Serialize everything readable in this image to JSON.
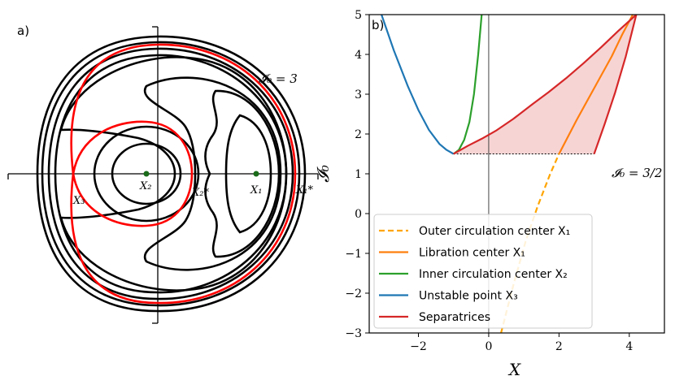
{
  "panel_a": {
    "label": "a)",
    "contour_label": "𝓘₀ = 3",
    "point_labels": {
      "X3": "X₃",
      "X2": "X₂",
      "X2s": "X₂*",
      "X1": "X₁",
      "X1s": "X₁*"
    }
  },
  "chart_data": {
    "type": "line",
    "panel_label": "b)",
    "xlabel": "X",
    "ylabel": "𝓘₀",
    "xlim": [
      -3.4,
      5.0
    ],
    "ylim": [
      -3,
      5
    ],
    "xticks": [
      -2,
      0,
      2,
      4
    ],
    "yticks": [
      -3,
      -2,
      -1,
      0,
      1,
      2,
      3,
      4,
      5
    ],
    "xtick_labels": [
      "−2",
      "0",
      "2",
      "4"
    ],
    "ytick_labels": [
      "−3",
      "−2",
      "−1",
      "0",
      "1",
      "2",
      "3",
      "4",
      "5"
    ],
    "annotation": "𝓘₀ = 3/2",
    "threshold_I0": 1.5,
    "legend_position": "lower left",
    "series": [
      {
        "name": "Outer circulation center X₁",
        "color": "#ffa500",
        "style": "dashed",
        "x": [
          0.35,
          0.7,
          1.05,
          1.4,
          1.75,
          2.0
        ],
        "y": [
          -3.0,
          -1.8,
          -0.7,
          0.2,
          1.0,
          1.5
        ]
      },
      {
        "name": "Libration center X₁",
        "color": "#ff7f0e",
        "style": "solid",
        "x": [
          2.0,
          2.5,
          3.0,
          3.5,
          3.8,
          4.1
        ],
        "y": [
          1.5,
          2.35,
          3.15,
          3.95,
          4.5,
          5.0
        ]
      },
      {
        "name": "Inner circulation center X₂",
        "color": "#2ca02c",
        "style": "solid",
        "x": [
          -1.0,
          -0.85,
          -0.7,
          -0.55,
          -0.42,
          -0.3,
          -0.2
        ],
        "y": [
          1.5,
          1.6,
          1.85,
          2.3,
          3.0,
          4.0,
          5.0
        ]
      },
      {
        "name": "Unstable point X₃",
        "color": "#1f77b4",
        "style": "solid",
        "x": [
          -3.05,
          -2.7,
          -2.3,
          -2.0,
          -1.7,
          -1.4,
          -1.2,
          -1.0
        ],
        "y": [
          5.0,
          4.1,
          3.2,
          2.6,
          2.1,
          1.75,
          1.6,
          1.5
        ]
      },
      {
        "name": "Separatrices",
        "color": "#d62728",
        "style": "solid",
        "x": [
          -1.0,
          -0.6,
          -0.2,
          0.2,
          0.7,
          1.2,
          1.7,
          2.2,
          2.7,
          3.2,
          3.7,
          4.2
        ],
        "y": [
          1.5,
          1.7,
          1.88,
          2.08,
          2.38,
          2.72,
          3.05,
          3.4,
          3.78,
          4.18,
          4.6,
          5.0
        ]
      },
      {
        "name": "",
        "color": "#d62728",
        "style": "solid",
        "x": [
          3.0,
          3.3,
          3.6,
          3.9,
          4.2
        ],
        "y": [
          1.5,
          2.25,
          3.05,
          3.95,
          5.0
        ]
      }
    ]
  }
}
